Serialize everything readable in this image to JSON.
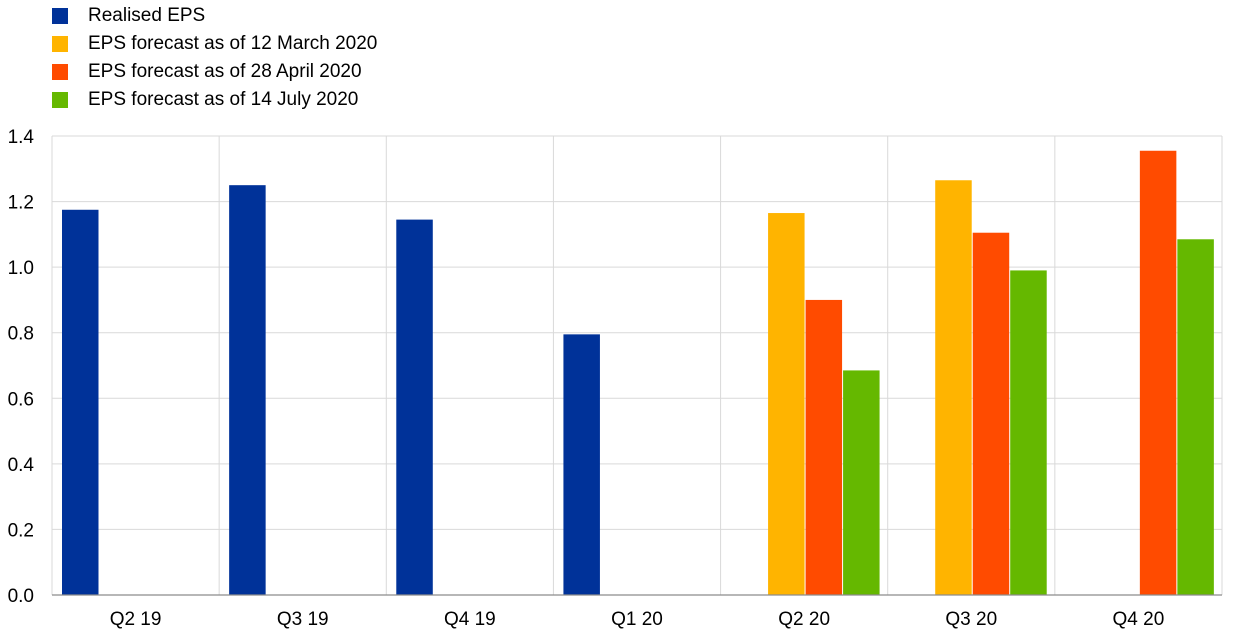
{
  "chart_data": {
    "type": "bar",
    "categories": [
      "Q2 19",
      "Q3 19",
      "Q4 19",
      "Q1 20",
      "Q2 20",
      "Q3 20",
      "Q4 20"
    ],
    "series": [
      {
        "name": "Realised EPS",
        "color": "#003299",
        "values": [
          1.175,
          1.25,
          1.145,
          0.795,
          null,
          null,
          null
        ]
      },
      {
        "name": "EPS forecast as of 12 March 2020",
        "color": "#FFB400",
        "values": [
          null,
          null,
          null,
          null,
          1.165,
          1.265,
          null
        ]
      },
      {
        "name": "EPS forecast as of 28 April 2020",
        "color": "#FF4B00",
        "values": [
          null,
          null,
          null,
          null,
          0.9,
          1.105,
          1.355
        ]
      },
      {
        "name": "EPS forecast as of 14 July 2020",
        "color": "#65B800",
        "values": [
          null,
          null,
          null,
          null,
          0.685,
          0.99,
          1.085
        ]
      }
    ],
    "yticks": [
      "0.0",
      "0.2",
      "0.4",
      "0.6",
      "0.8",
      "1.0",
      "1.2",
      "1.4"
    ],
    "ylim": [
      0,
      1.4
    ],
    "grid": true,
    "legend_position": "top-left",
    "title": "",
    "xlabel": "",
    "ylabel": ""
  }
}
